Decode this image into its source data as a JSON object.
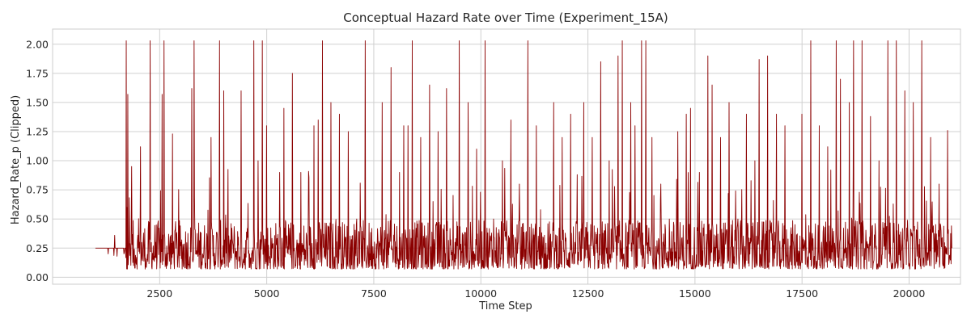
{
  "chart_data": {
    "type": "line",
    "title": "Conceptual Hazard Rate over Time (Experiment_15A)",
    "xlabel": "Time Step",
    "ylabel": "Hazard_Rate_p (Clipped)",
    "xlim": [
      0,
      21200
    ],
    "ylim": [
      -0.06,
      2.13
    ],
    "xticks": [
      2500,
      5000,
      7500,
      10000,
      12500,
      15000,
      17500,
      20000
    ],
    "xtick_labels": [
      "2500",
      "5000",
      "7500",
      "10000",
      "12500",
      "15000",
      "17500",
      "20000"
    ],
    "yticks": [
      0.0,
      0.25,
      0.5,
      0.75,
      1.0,
      1.25,
      1.5,
      1.75,
      2.0
    ],
    "ytick_labels": [
      "0.00",
      "0.25",
      "0.50",
      "0.75",
      "1.00",
      "1.25",
      "1.50",
      "1.75",
      "2.00"
    ],
    "grid": true,
    "line_color": "#8b0000",
    "series": [
      {
        "x_start": 1000,
        "x_end": 21000,
        "initial_level": 0.25,
        "clip_max": 2.03,
        "sampled_points": [
          [
            1000,
            0.25
          ],
          [
            1200,
            0.25
          ],
          [
            1300,
            0.2
          ],
          [
            1400,
            0.25
          ],
          [
            1450,
            0.36
          ],
          [
            1500,
            0.18
          ],
          [
            1600,
            0.25
          ],
          [
            1700,
            0.25
          ],
          [
            1720,
            2.03
          ],
          [
            1740,
            0.6
          ],
          [
            1760,
            1.57
          ],
          [
            1780,
            0.3
          ],
          [
            1850,
            0.95
          ],
          [
            1900,
            0.2
          ],
          [
            2050,
            1.12
          ],
          [
            2200,
            0.15
          ],
          [
            2280,
            2.03
          ],
          [
            2400,
            0.3
          ],
          [
            2560,
            1.57
          ],
          [
            2600,
            2.03
          ],
          [
            2700,
            0.2
          ],
          [
            2800,
            1.23
          ],
          [
            3000,
            0.3
          ],
          [
            3250,
            1.62
          ],
          [
            3300,
            2.03
          ],
          [
            3500,
            0.2
          ],
          [
            3700,
            1.2
          ],
          [
            3900,
            2.03
          ],
          [
            4000,
            1.6
          ],
          [
            4200,
            0.3
          ],
          [
            4400,
            1.6
          ],
          [
            4600,
            0.2
          ],
          [
            4700,
            2.03
          ],
          [
            4800,
            1.0
          ],
          [
            4900,
            2.03
          ],
          [
            5000,
            1.3
          ],
          [
            5100,
            0.2
          ],
          [
            5300,
            0.9
          ],
          [
            5400,
            1.45
          ],
          [
            5500,
            0.2
          ],
          [
            5600,
            1.75
          ],
          [
            5800,
            0.9
          ],
          [
            6100,
            1.3
          ],
          [
            6200,
            1.35
          ],
          [
            6300,
            2.03
          ],
          [
            6400,
            0.3
          ],
          [
            6500,
            1.5
          ],
          [
            6700,
            1.4
          ],
          [
            6900,
            1.25
          ],
          [
            7100,
            0.5
          ],
          [
            7300,
            2.03
          ],
          [
            7500,
            0.2
          ],
          [
            7700,
            1.5
          ],
          [
            7900,
            1.8
          ],
          [
            8100,
            0.9
          ],
          [
            8200,
            1.3
          ],
          [
            8300,
            1.3
          ],
          [
            8400,
            2.03
          ],
          [
            8600,
            1.2
          ],
          [
            8800,
            1.65
          ],
          [
            9000,
            1.25
          ],
          [
            9200,
            1.62
          ],
          [
            9400,
            0.3
          ],
          [
            9500,
            2.03
          ],
          [
            9700,
            1.5
          ],
          [
            9900,
            1.1
          ],
          [
            10100,
            2.03
          ],
          [
            10300,
            0.5
          ],
          [
            10500,
            1.0
          ],
          [
            10700,
            1.35
          ],
          [
            10900,
            0.8
          ],
          [
            11100,
            2.03
          ],
          [
            11300,
            1.3
          ],
          [
            11500,
            0.2
          ],
          [
            11700,
            1.5
          ],
          [
            11900,
            1.2
          ],
          [
            12100,
            1.4
          ],
          [
            12200,
            0.3
          ],
          [
            12400,
            1.5
          ],
          [
            12600,
            1.2
          ],
          [
            12800,
            1.85
          ],
          [
            13000,
            1.0
          ],
          [
            13200,
            1.9
          ],
          [
            13300,
            2.03
          ],
          [
            13500,
            1.5
          ],
          [
            13600,
            1.3
          ],
          [
            13750,
            2.03
          ],
          [
            13850,
            2.03
          ],
          [
            14000,
            1.2
          ],
          [
            14200,
            0.8
          ],
          [
            14400,
            0.5
          ],
          [
            14600,
            1.25
          ],
          [
            14800,
            1.4
          ],
          [
            14900,
            1.45
          ],
          [
            15100,
            0.9
          ],
          [
            15300,
            1.9
          ],
          [
            15400,
            1.65
          ],
          [
            15600,
            1.2
          ],
          [
            15800,
            1.5
          ],
          [
            16000,
            0.5
          ],
          [
            16200,
            1.4
          ],
          [
            16400,
            1.0
          ],
          [
            16500,
            1.87
          ],
          [
            16700,
            1.9
          ],
          [
            16900,
            1.4
          ],
          [
            17100,
            1.3
          ],
          [
            17500,
            1.4
          ],
          [
            17700,
            2.03
          ],
          [
            17900,
            1.3
          ],
          [
            18100,
            1.12
          ],
          [
            18300,
            2.03
          ],
          [
            18400,
            1.7
          ],
          [
            18600,
            1.5
          ],
          [
            18700,
            2.03
          ],
          [
            18900,
            2.03
          ],
          [
            19100,
            1.38
          ],
          [
            19300,
            1.0
          ],
          [
            19500,
            2.03
          ],
          [
            19700,
            2.03
          ],
          [
            19900,
            1.6
          ],
          [
            20100,
            1.5
          ],
          [
            20300,
            2.03
          ],
          [
            20500,
            1.2
          ],
          [
            20700,
            0.8
          ],
          [
            20900,
            1.26
          ],
          [
            21000,
            0.25
          ]
        ]
      }
    ]
  }
}
